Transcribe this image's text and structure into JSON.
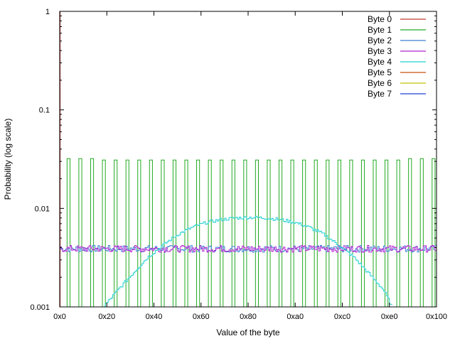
{
  "chart_data": {
    "type": "line",
    "title": "",
    "xlabel": "Value of the byte",
    "ylabel": "Probability (log scale)",
    "xlim": [
      0,
      256
    ],
    "ylim": [
      0.001,
      1
    ],
    "y_scale": "log",
    "grid": false,
    "legend_position": "top-right",
    "x_ticks": [
      {
        "value": 0,
        "label": "0x0"
      },
      {
        "value": 32,
        "label": "0x20"
      },
      {
        "value": 64,
        "label": "0x40"
      },
      {
        "value": 96,
        "label": "0x60"
      },
      {
        "value": 128,
        "label": "0x80"
      },
      {
        "value": 160,
        "label": "0xa0"
      },
      {
        "value": 192,
        "label": "0xc0"
      },
      {
        "value": 224,
        "label": "0xe0"
      },
      {
        "value": 256,
        "label": "0x100"
      }
    ],
    "y_ticks": [
      {
        "value": 1,
        "label": "1"
      },
      {
        "value": 0.1,
        "label": "0.1"
      },
      {
        "value": 0.01,
        "label": "0.01"
      },
      {
        "value": 0.001,
        "label": "0.001"
      }
    ],
    "series": [
      {
        "name": "Byte 0",
        "color": "#c0392b",
        "shape": "spike",
        "x": [
          0,
          1
        ],
        "values": [
          1.0,
          0.0
        ]
      },
      {
        "name": "Byte 1",
        "color": "#22aa22",
        "shape": "comb",
        "x": [
          5,
          13,
          21,
          29,
          37,
          45,
          53,
          61,
          69,
          77,
          85,
          93,
          101,
          109,
          117,
          125,
          133,
          141,
          149,
          157,
          165,
          173,
          181,
          189,
          197,
          205,
          213,
          221,
          229,
          237,
          245,
          253
        ],
        "values": [
          0.032,
          0.032,
          0.032,
          0.031,
          0.031,
          0.031,
          0.031,
          0.031,
          0.031,
          0.031,
          0.031,
          0.031,
          0.031,
          0.031,
          0.031,
          0.031,
          0.031,
          0.031,
          0.031,
          0.031,
          0.031,
          0.031,
          0.031,
          0.031,
          0.031,
          0.031,
          0.031,
          0.031,
          0.031,
          0.032,
          0.032,
          0.032
        ],
        "width": 2
      },
      {
        "name": "Byte 2",
        "color": "#3a7fd0",
        "shape": "noise",
        "x": [
          0,
          256
        ],
        "values": [
          0.0039,
          0.0039
        ]
      },
      {
        "name": "Byte 3",
        "color": "#b020d0",
        "shape": "noise",
        "x": [
          0,
          256
        ],
        "values": [
          0.0039,
          0.0039
        ]
      },
      {
        "name": "Byte 4",
        "color": "#22d0d0",
        "shape": "hump",
        "x": [
          30,
          40,
          50,
          60,
          70,
          80,
          90,
          100,
          110,
          120,
          130,
          140,
          150,
          160,
          170,
          180,
          190,
          200,
          210,
          220,
          226
        ],
        "values": [
          0.001,
          0.0015,
          0.0022,
          0.0032,
          0.0042,
          0.0054,
          0.0064,
          0.0072,
          0.0077,
          0.008,
          0.0081,
          0.008,
          0.0077,
          0.0072,
          0.0064,
          0.0054,
          0.0042,
          0.0032,
          0.0022,
          0.0015,
          0.001
        ]
      },
      {
        "name": "Byte 5",
        "color": "#c85010",
        "shape": "none",
        "x": [],
        "values": []
      },
      {
        "name": "Byte 6",
        "color": "#c8c000",
        "shape": "none",
        "x": [],
        "values": []
      },
      {
        "name": "Byte 7",
        "color": "#2040d0",
        "shape": "none",
        "x": [],
        "values": []
      }
    ]
  }
}
